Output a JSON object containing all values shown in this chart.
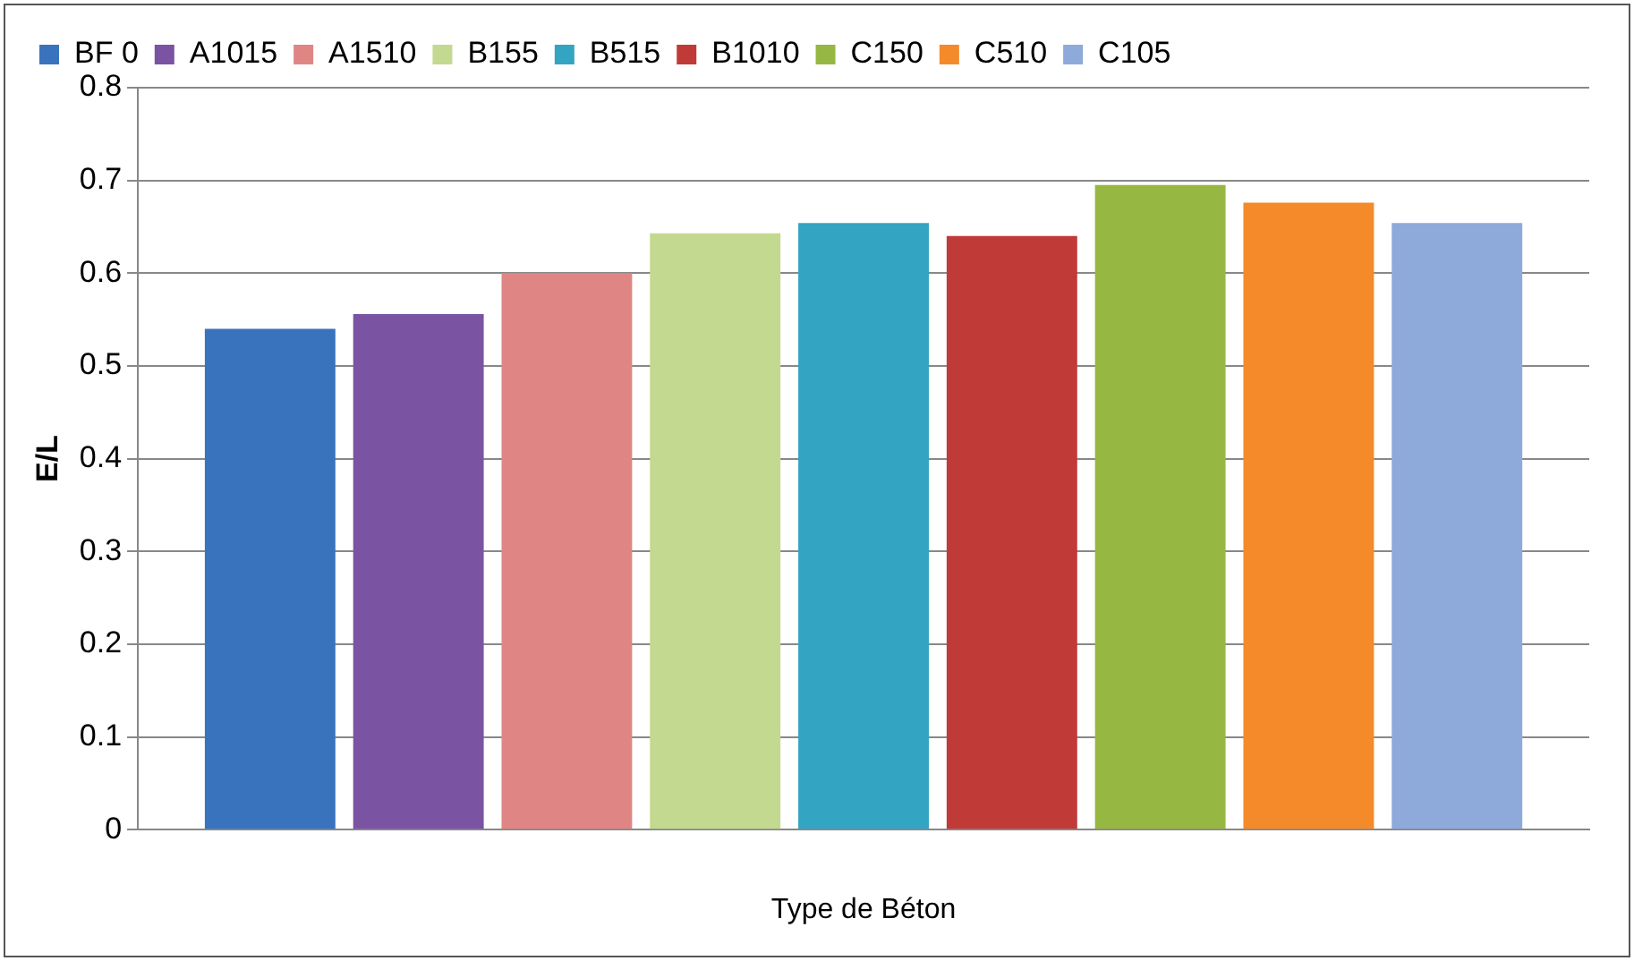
{
  "chart_data": {
    "type": "bar",
    "xlabel": "Type de Béton",
    "ylabel": "E/L",
    "categories": [
      null
    ],
    "series": [
      {
        "name": "BF 0",
        "color": "#3a73bd",
        "values": [
          0.54
        ]
      },
      {
        "name": "A1015",
        "color": "#7a54a2",
        "values": [
          0.556
        ]
      },
      {
        "name": "A1510",
        "color": "#df8684",
        "values": [
          0.6
        ]
      },
      {
        "name": "B155",
        "color": "#c3d98f",
        "values": [
          0.643
        ]
      },
      {
        "name": "B515",
        "color": "#33a4c2",
        "values": [
          0.654
        ]
      },
      {
        "name": "B1010",
        "color": "#c03a38",
        "values": [
          0.64
        ]
      },
      {
        "name": "C150",
        "color": "#96b842",
        "values": [
          0.695
        ]
      },
      {
        "name": "C510",
        "color": "#f48a2a",
        "values": [
          0.676
        ]
      },
      {
        "name": "C105",
        "color": "#8daadb",
        "values": [
          0.654
        ]
      }
    ],
    "ylim": [
      0,
      0.8
    ],
    "yticks": [
      0,
      0.1,
      0.2,
      0.3,
      0.4,
      0.5,
      0.6,
      0.7,
      0.8
    ],
    "grid": "y",
    "legend": "top"
  }
}
